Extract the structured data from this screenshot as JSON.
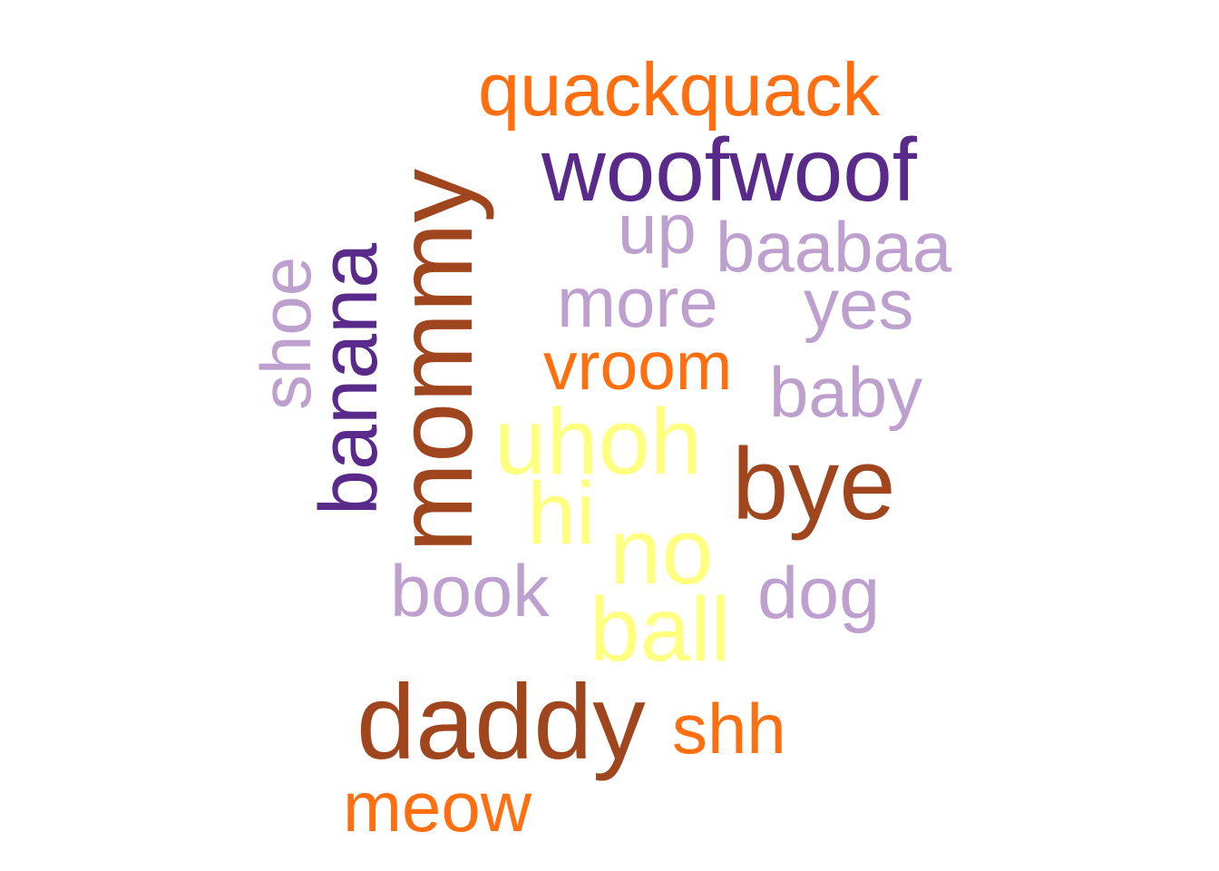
{
  "word_cloud": {
    "palette": {
      "brown": "#A0461E",
      "orange": "#FF6E0F",
      "purple": "#5A2A8A",
      "lilac": "#BEA0CF",
      "yellow": "#FFFF80"
    },
    "words": [
      {
        "text": "quackquack",
        "color": "orange"
      },
      {
        "text": "woofwoof",
        "color": "purple"
      },
      {
        "text": "up",
        "color": "lilac"
      },
      {
        "text": "baabaa",
        "color": "lilac"
      },
      {
        "text": "more",
        "color": "lilac"
      },
      {
        "text": "yes",
        "color": "lilac"
      },
      {
        "text": "vroom",
        "color": "orange"
      },
      {
        "text": "baby",
        "color": "lilac"
      },
      {
        "text": "uhoh",
        "color": "yellow"
      },
      {
        "text": "bye",
        "color": "brown"
      },
      {
        "text": "hi",
        "color": "yellow"
      },
      {
        "text": "no",
        "color": "yellow"
      },
      {
        "text": "book",
        "color": "lilac"
      },
      {
        "text": "dog",
        "color": "lilac"
      },
      {
        "text": "ball",
        "color": "yellow"
      },
      {
        "text": "daddy",
        "color": "brown"
      },
      {
        "text": "shh",
        "color": "orange"
      },
      {
        "text": "meow",
        "color": "orange"
      },
      {
        "text": "shoe",
        "color": "lilac",
        "orientation": "vertical"
      },
      {
        "text": "banana",
        "color": "purple",
        "orientation": "vertical"
      },
      {
        "text": "mommy",
        "color": "brown",
        "orientation": "vertical"
      }
    ]
  }
}
